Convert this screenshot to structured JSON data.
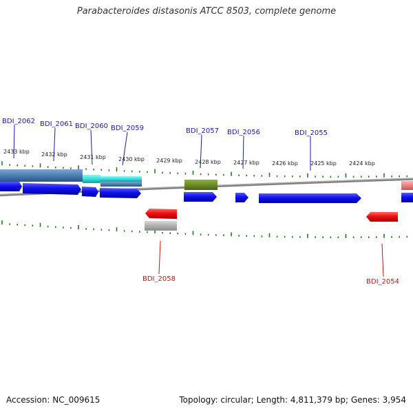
{
  "title": "Parabacteroides distasonis ATCC 8503, complete genome",
  "footer": {
    "accession": "Accession: NC_009615",
    "stats": "Topology: circular; Length: 4,811,379 bp; Genes: 3,954"
  },
  "colors": {
    "forward": "#1010ee",
    "reverse": "#ee1111",
    "label_forward": "#1a1aa8",
    "label_reverse": "#cc1010",
    "axis": "#808080",
    "tick": "#1e7a1e",
    "steelblue": "#4a7fb5",
    "cyan": "#33dddd",
    "olive": "#6b8e23",
    "gray": "#b0b0b0",
    "pink": "#f08080"
  },
  "kbp_labels": [
    "2433 kbp",
    "2432 kbp",
    "2431 kbp",
    "2430 kbp",
    "2429 kbp",
    "2428 kbp",
    "2427 kbp",
    "2426 kbp",
    "2425 kbp",
    "2424 kbp"
  ],
  "genes": [
    {
      "name": "BDI_2062",
      "strand": "+"
    },
    {
      "name": "BDI_2061",
      "strand": "+"
    },
    {
      "name": "BDI_2060",
      "strand": "+"
    },
    {
      "name": "BDI_2059",
      "strand": "+"
    },
    {
      "name": "BDI_2058",
      "strand": "-"
    },
    {
      "name": "BDI_2057",
      "strand": "+"
    },
    {
      "name": "BDI_2056",
      "strand": "+"
    },
    {
      "name": "BDI_2055",
      "strand": "+"
    },
    {
      "name": "BDI_2054",
      "strand": "-"
    }
  ]
}
